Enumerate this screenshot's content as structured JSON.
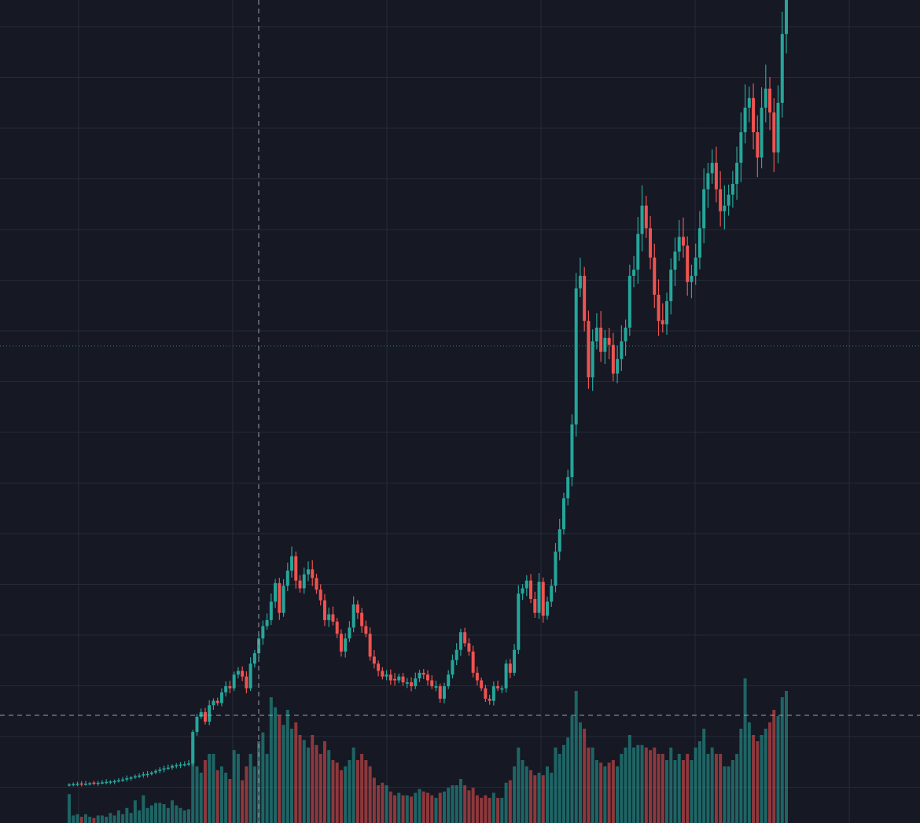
{
  "chart_data": {
    "type": "candlestick",
    "title": "",
    "xlabel": "",
    "ylabel": "",
    "grid": true,
    "x_index_range": [
      0,
      174
    ],
    "colors": {
      "background": "#161824",
      "grid": "#262a38",
      "up": "#26a69a",
      "down": "#ef5350",
      "crosshair": "#9aa0ac",
      "last_price_line": "#26a69a"
    },
    "candles": [
      {
        "close": 1.0,
        "volume": 0.23,
        "up": true
      },
      {
        "close": 1.01,
        "volume": 0.06,
        "up": true
      },
      {
        "close": 1.02,
        "volume": 0.07,
        "up": true
      },
      {
        "close": 1.01,
        "volume": 0.05,
        "up": false
      },
      {
        "close": 1.02,
        "volume": 0.07,
        "up": true
      },
      {
        "close": 1.03,
        "volume": 0.05,
        "up": true
      },
      {
        "close": 1.03,
        "volume": 0.04,
        "up": false
      },
      {
        "close": 1.04,
        "volume": 0.06,
        "up": true
      },
      {
        "close": 1.05,
        "volume": 0.06,
        "up": true
      },
      {
        "close": 1.06,
        "volume": 0.05,
        "up": true
      },
      {
        "close": 1.07,
        "volume": 0.08,
        "up": true
      },
      {
        "close": 1.08,
        "volume": 0.06,
        "up": true
      },
      {
        "close": 1.1,
        "volume": 0.1,
        "up": true
      },
      {
        "close": 1.12,
        "volume": 0.07,
        "up": true
      },
      {
        "close": 1.15,
        "volume": 0.12,
        "up": true
      },
      {
        "close": 1.17,
        "volume": 0.08,
        "up": true
      },
      {
        "close": 1.2,
        "volume": 0.18,
        "up": true
      },
      {
        "close": 1.22,
        "volume": 0.1,
        "up": true
      },
      {
        "close": 1.25,
        "volume": 0.22,
        "up": true
      },
      {
        "close": 1.26,
        "volume": 0.12,
        "up": true
      },
      {
        "close": 1.3,
        "volume": 0.14,
        "up": true
      },
      {
        "close": 1.34,
        "volume": 0.16,
        "up": true
      },
      {
        "close": 1.38,
        "volume": 0.16,
        "up": true
      },
      {
        "close": 1.41,
        "volume": 0.15,
        "up": true
      },
      {
        "close": 1.43,
        "volume": 0.12,
        "up": true
      },
      {
        "close": 1.48,
        "volume": 0.18,
        "up": true
      },
      {
        "close": 1.5,
        "volume": 0.14,
        "up": true
      },
      {
        "close": 1.52,
        "volume": 0.12,
        "up": true
      },
      {
        "close": 1.53,
        "volume": 0.1,
        "up": true
      },
      {
        "close": 1.55,
        "volume": 0.11,
        "up": true
      },
      {
        "close": 2.6,
        "volume": 0.66,
        "up": true
      },
      {
        "close": 3.2,
        "volume": 0.45,
        "up": true
      },
      {
        "close": 3.4,
        "volume": 0.4,
        "up": true
      },
      {
        "close": 3.0,
        "volume": 0.5,
        "up": false
      },
      {
        "close": 3.7,
        "volume": 0.55,
        "up": true
      },
      {
        "close": 3.9,
        "volume": 0.55,
        "up": true
      },
      {
        "close": 3.8,
        "volume": 0.42,
        "up": false
      },
      {
        "close": 4.3,
        "volume": 0.45,
        "up": true
      },
      {
        "close": 4.6,
        "volume": 0.4,
        "up": true
      },
      {
        "close": 4.5,
        "volume": 0.35,
        "up": false
      },
      {
        "close": 5.2,
        "volume": 0.58,
        "up": true
      },
      {
        "close": 5.4,
        "volume": 0.55,
        "up": true
      },
      {
        "close": 5.1,
        "volume": 0.34,
        "up": false
      },
      {
        "close": 4.5,
        "volume": 0.45,
        "up": false
      },
      {
        "close": 5.8,
        "volume": 0.55,
        "up": true
      },
      {
        "close": 6.4,
        "volume": 0.45,
        "up": true
      },
      {
        "close": 7.3,
        "volume": 0.65,
        "up": true
      },
      {
        "close": 8.1,
        "volume": 0.72,
        "up": true
      },
      {
        "close": 8.5,
        "volume": 0.55,
        "up": true
      },
      {
        "close": 9.8,
        "volume": 1.0,
        "up": true
      },
      {
        "close": 11.2,
        "volume": 0.92,
        "up": true
      },
      {
        "close": 9.0,
        "volume": 0.85,
        "up": false
      },
      {
        "close": 11.0,
        "volume": 0.78,
        "up": true
      },
      {
        "close": 12.2,
        "volume": 0.9,
        "up": true
      },
      {
        "close": 13.4,
        "volume": 0.75,
        "up": true
      },
      {
        "close": 11.4,
        "volume": 0.8,
        "up": false
      },
      {
        "close": 10.8,
        "volume": 0.7,
        "up": false
      },
      {
        "close": 11.9,
        "volume": 0.66,
        "up": true
      },
      {
        "close": 12.3,
        "volume": 0.6,
        "up": true
      },
      {
        "close": 11.6,
        "volume": 0.7,
        "up": false
      },
      {
        "close": 10.7,
        "volume": 0.62,
        "up": false
      },
      {
        "close": 9.9,
        "volume": 0.55,
        "up": false
      },
      {
        "close": 8.5,
        "volume": 0.65,
        "up": false
      },
      {
        "close": 8.9,
        "volume": 0.58,
        "up": true
      },
      {
        "close": 8.4,
        "volume": 0.5,
        "up": false
      },
      {
        "close": 7.6,
        "volume": 0.48,
        "up": false
      },
      {
        "close": 6.5,
        "volume": 0.42,
        "up": false
      },
      {
        "close": 7.3,
        "volume": 0.45,
        "up": true
      },
      {
        "close": 8.0,
        "volume": 0.5,
        "up": true
      },
      {
        "close": 9.6,
        "volume": 0.6,
        "up": true
      },
      {
        "close": 9.0,
        "volume": 0.5,
        "up": false
      },
      {
        "close": 8.1,
        "volume": 0.55,
        "up": false
      },
      {
        "close": 7.6,
        "volume": 0.5,
        "up": false
      },
      {
        "close": 6.2,
        "volume": 0.45,
        "up": false
      },
      {
        "close": 5.8,
        "volume": 0.36,
        "up": false
      },
      {
        "close": 5.4,
        "volume": 0.3,
        "up": false
      },
      {
        "close": 5.1,
        "volume": 0.32,
        "up": false
      },
      {
        "close": 5.2,
        "volume": 0.3,
        "up": true
      },
      {
        "close": 4.9,
        "volume": 0.25,
        "up": false
      },
      {
        "close": 4.9,
        "volume": 0.22,
        "up": false
      },
      {
        "close": 5.1,
        "volume": 0.24,
        "up": true
      },
      {
        "close": 4.8,
        "volume": 0.22,
        "up": false
      },
      {
        "close": 4.8,
        "volume": 0.22,
        "up": true
      },
      {
        "close": 4.6,
        "volume": 0.21,
        "up": false
      },
      {
        "close": 5.0,
        "volume": 0.24,
        "up": true
      },
      {
        "close": 5.3,
        "volume": 0.27,
        "up": true
      },
      {
        "close": 5.2,
        "volume": 0.25,
        "up": false
      },
      {
        "close": 4.9,
        "volume": 0.24,
        "up": false
      },
      {
        "close": 4.6,
        "volume": 0.22,
        "up": false
      },
      {
        "close": 4.6,
        "volume": 0.2,
        "up": true
      },
      {
        "close": 4.0,
        "volume": 0.24,
        "up": false
      },
      {
        "close": 4.6,
        "volume": 0.25,
        "up": true
      },
      {
        "close": 5.2,
        "volume": 0.28,
        "up": true
      },
      {
        "close": 6.0,
        "volume": 0.3,
        "up": true
      },
      {
        "close": 6.6,
        "volume": 0.3,
        "up": true
      },
      {
        "close": 7.7,
        "volume": 0.35,
        "up": true
      },
      {
        "close": 7.0,
        "volume": 0.3,
        "up": false
      },
      {
        "close": 6.5,
        "volume": 0.26,
        "up": false
      },
      {
        "close": 5.3,
        "volume": 0.28,
        "up": false
      },
      {
        "close": 4.9,
        "volume": 0.22,
        "up": false
      },
      {
        "close": 4.5,
        "volume": 0.2,
        "up": false
      },
      {
        "close": 4.0,
        "volume": 0.22,
        "up": false
      },
      {
        "close": 3.9,
        "volume": 0.2,
        "up": false
      },
      {
        "close": 4.6,
        "volume": 0.24,
        "up": true
      },
      {
        "close": 4.5,
        "volume": 0.2,
        "up": false
      },
      {
        "close": 4.5,
        "volume": 0.2,
        "up": true
      },
      {
        "close": 5.8,
        "volume": 0.32,
        "up": true
      },
      {
        "close": 5.3,
        "volume": 0.34,
        "up": false
      },
      {
        "close": 6.6,
        "volume": 0.45,
        "up": true
      },
      {
        "close": 10.4,
        "volume": 0.6,
        "up": true
      },
      {
        "close": 10.8,
        "volume": 0.5,
        "up": true
      },
      {
        "close": 11.4,
        "volume": 0.45,
        "up": true
      },
      {
        "close": 10.0,
        "volume": 0.42,
        "up": false
      },
      {
        "close": 9.0,
        "volume": 0.38,
        "up": false
      },
      {
        "close": 11.3,
        "volume": 0.4,
        "up": true
      },
      {
        "close": 8.8,
        "volume": 0.38,
        "up": false
      },
      {
        "close": 9.8,
        "volume": 0.45,
        "up": true
      },
      {
        "close": 11.0,
        "volume": 0.4,
        "up": true
      },
      {
        "close": 13.8,
        "volume": 0.6,
        "up": true
      },
      {
        "close": 15.8,
        "volume": 0.55,
        "up": true
      },
      {
        "close": 18.8,
        "volume": 0.62,
        "up": true
      },
      {
        "close": 21.0,
        "volume": 0.68,
        "up": true
      },
      {
        "close": 27.0,
        "volume": 0.85,
        "up": true
      },
      {
        "close": 46.0,
        "volume": 1.05,
        "up": true
      },
      {
        "close": 48.0,
        "volume": 0.8,
        "up": true
      },
      {
        "close": 41.0,
        "volume": 0.75,
        "up": false
      },
      {
        "close": 33.0,
        "volume": 0.6,
        "up": false
      },
      {
        "close": 38.0,
        "volume": 0.6,
        "up": true
      },
      {
        "close": 40.0,
        "volume": 0.5,
        "up": true
      },
      {
        "close": 36.5,
        "volume": 0.48,
        "up": false
      },
      {
        "close": 38.5,
        "volume": 0.45,
        "up": true
      },
      {
        "close": 37.5,
        "volume": 0.48,
        "up": false
      },
      {
        "close": 33.5,
        "volume": 0.5,
        "up": false
      },
      {
        "close": 35.5,
        "volume": 0.45,
        "up": true
      },
      {
        "close": 38.0,
        "volume": 0.55,
        "up": true
      },
      {
        "close": 40.0,
        "volume": 0.6,
        "up": true
      },
      {
        "close": 48.0,
        "volume": 0.7,
        "up": true
      },
      {
        "close": 49.0,
        "volume": 0.6,
        "up": true
      },
      {
        "close": 55.0,
        "volume": 0.62,
        "up": true
      },
      {
        "close": 60.0,
        "volume": 0.62,
        "up": true
      },
      {
        "close": 56.0,
        "volume": 0.6,
        "up": false
      },
      {
        "close": 51.0,
        "volume": 0.58,
        "up": false
      },
      {
        "close": 45.0,
        "volume": 0.6,
        "up": false
      },
      {
        "close": 41.0,
        "volume": 0.55,
        "up": false
      },
      {
        "close": 40.5,
        "volume": 0.55,
        "up": false
      },
      {
        "close": 44.0,
        "volume": 0.5,
        "up": true
      },
      {
        "close": 49.0,
        "volume": 0.6,
        "up": true
      },
      {
        "close": 52.0,
        "volume": 0.5,
        "up": true
      },
      {
        "close": 54.5,
        "volume": 0.55,
        "up": true
      },
      {
        "close": 53.0,
        "volume": 0.5,
        "up": false
      },
      {
        "close": 47.0,
        "volume": 0.55,
        "up": false
      },
      {
        "close": 48.0,
        "volume": 0.5,
        "up": true
      },
      {
        "close": 51.0,
        "volume": 0.6,
        "up": true
      },
      {
        "close": 56.0,
        "volume": 0.65,
        "up": true
      },
      {
        "close": 63.0,
        "volume": 0.75,
        "up": true
      },
      {
        "close": 66.0,
        "volume": 0.55,
        "up": true
      },
      {
        "close": 68.0,
        "volume": 0.6,
        "up": true
      },
      {
        "close": 63.0,
        "volume": 0.55,
        "up": false
      },
      {
        "close": 59.0,
        "volume": 0.55,
        "up": false
      },
      {
        "close": 60.0,
        "volume": 0.45,
        "up": true
      },
      {
        "close": 62.0,
        "volume": 0.45,
        "up": true
      },
      {
        "close": 64.0,
        "volume": 0.5,
        "up": true
      },
      {
        "close": 68.0,
        "volume": 0.55,
        "up": true
      },
      {
        "close": 74.0,
        "volume": 0.75,
        "up": true
      },
      {
        "close": 79.0,
        "volume": 1.15,
        "up": true
      },
      {
        "close": 81.0,
        "volume": 0.8,
        "up": true
      },
      {
        "close": 74.0,
        "volume": 0.7,
        "up": false
      },
      {
        "close": 69.0,
        "volume": 0.65,
        "up": false
      },
      {
        "close": 79.0,
        "volume": 0.7,
        "up": true
      },
      {
        "close": 83.0,
        "volume": 0.75,
        "up": true
      },
      {
        "close": 78.0,
        "volume": 0.8,
        "up": false
      },
      {
        "close": 70.0,
        "volume": 0.9,
        "up": false
      },
      {
        "close": 80.0,
        "volume": 0.85,
        "up": true
      },
      {
        "close": 95.0,
        "volume": 1.0,
        "up": true
      },
      {
        "close": 104.0,
        "volume": 1.05,
        "up": true
      }
    ]
  }
}
